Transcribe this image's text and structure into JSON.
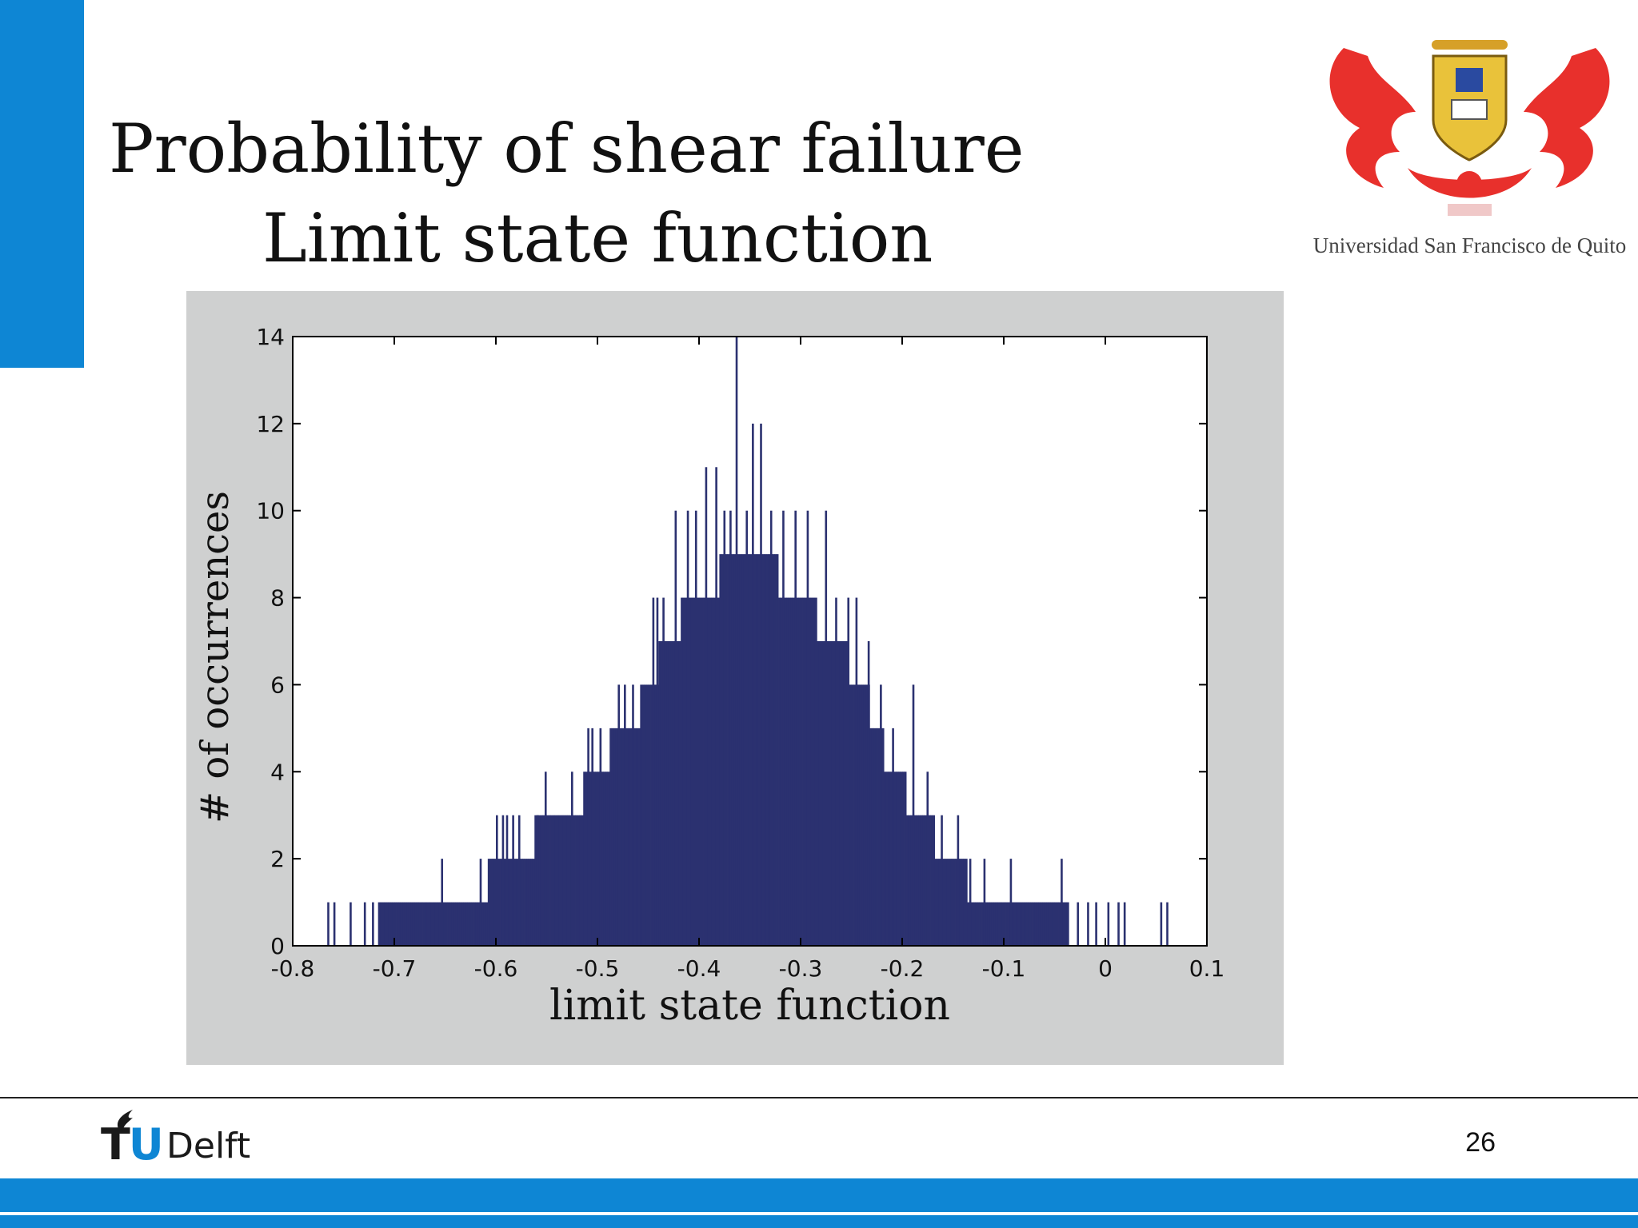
{
  "slide": {
    "title_line1": "Probability of shear failure",
    "title_line2": "Limit state function",
    "page_number": "26",
    "footer_logo_tu": "TU",
    "footer_logo_delft": "Delft",
    "usfq_caption": "Universidad San Francisco de Quito",
    "colors": {
      "accent": "#0e86d4",
      "bars": "#2b3170",
      "chart_bg": "#cfd0d0"
    }
  },
  "chart_data": {
    "type": "bar",
    "xlabel": "limit state function",
    "ylabel": "# of occurrences",
    "xlim": [
      -0.8,
      0.1
    ],
    "ylim": [
      0,
      14
    ],
    "xticks": [
      -0.8,
      -0.7,
      -0.6,
      -0.5,
      -0.4,
      -0.3,
      -0.2,
      -0.1,
      0,
      0.1
    ],
    "xtick_labels": [
      "-0.8",
      "-0.7",
      "-0.6",
      "-0.5",
      "-0.4",
      "-0.3",
      "-0.2",
      "-0.1",
      "0",
      "0.1"
    ],
    "yticks": [
      0,
      2,
      4,
      6,
      8,
      10,
      12,
      14
    ],
    "ytick_labels": [
      "0",
      "2",
      "4",
      "6",
      "8",
      "10",
      "12",
      "14"
    ],
    "grid": false,
    "bin_width": 0.002,
    "profile": [
      [
        -0.78,
        0
      ],
      [
        -0.77,
        0.5
      ],
      [
        -0.75,
        0.6
      ],
      [
        -0.72,
        0.8
      ],
      [
        -0.7,
        1
      ],
      [
        -0.66,
        1
      ],
      [
        -0.64,
        1.2
      ],
      [
        -0.6,
        2
      ],
      [
        -0.56,
        2.9
      ],
      [
        -0.52,
        3.6
      ],
      [
        -0.5,
        4.5
      ],
      [
        -0.47,
        5.4
      ],
      [
        -0.45,
        6.2
      ],
      [
        -0.43,
        7.4
      ],
      [
        -0.4,
        8.5
      ],
      [
        -0.37,
        9
      ],
      [
        -0.33,
        9
      ],
      [
        -0.3,
        8.4
      ],
      [
        -0.27,
        7.4
      ],
      [
        -0.24,
        6.4
      ],
      [
        -0.22,
        5
      ],
      [
        -0.2,
        4
      ],
      [
        -0.17,
        3
      ],
      [
        -0.15,
        2
      ],
      [
        -0.11,
        1.6
      ],
      [
        -0.1,
        1
      ],
      [
        -0.06,
        1
      ],
      [
        -0.04,
        0.9
      ],
      [
        -0.01,
        0.6
      ],
      [
        0.02,
        0.3
      ],
      [
        0.06,
        0
      ]
    ],
    "spikes": [
      [
        -0.766,
        1
      ],
      [
        -0.76,
        1
      ],
      [
        -0.744,
        1
      ],
      [
        -0.73,
        1
      ],
      [
        -0.722,
        1
      ],
      [
        -0.654,
        2
      ],
      [
        -0.616,
        2
      ],
      [
        -0.6,
        3
      ],
      [
        -0.594,
        3
      ],
      [
        -0.59,
        3
      ],
      [
        -0.584,
        3
      ],
      [
        -0.578,
        3
      ],
      [
        -0.56,
        3
      ],
      [
        -0.552,
        4
      ],
      [
        -0.526,
        4
      ],
      [
        -0.51,
        5
      ],
      [
        -0.506,
        5
      ],
      [
        -0.498,
        5
      ],
      [
        -0.48,
        6
      ],
      [
        -0.474,
        6
      ],
      [
        -0.466,
        6
      ],
      [
        -0.446,
        8
      ],
      [
        -0.442,
        8
      ],
      [
        -0.436,
        8
      ],
      [
        -0.424,
        10
      ],
      [
        -0.412,
        10
      ],
      [
        -0.404,
        10
      ],
      [
        -0.394,
        11
      ],
      [
        -0.384,
        11
      ],
      [
        -0.376,
        10
      ],
      [
        -0.37,
        10
      ],
      [
        -0.364,
        14
      ],
      [
        -0.354,
        10
      ],
      [
        -0.348,
        12
      ],
      [
        -0.34,
        12
      ],
      [
        -0.33,
        10
      ],
      [
        -0.318,
        10
      ],
      [
        -0.306,
        10
      ],
      [
        -0.294,
        10
      ],
      [
        -0.276,
        10
      ],
      [
        -0.266,
        8
      ],
      [
        -0.254,
        8
      ],
      [
        -0.246,
        8
      ],
      [
        -0.234,
        7
      ],
      [
        -0.222,
        6
      ],
      [
        -0.21,
        5
      ],
      [
        -0.19,
        6
      ],
      [
        -0.176,
        4
      ],
      [
        -0.162,
        3
      ],
      [
        -0.146,
        3
      ],
      [
        -0.134,
        2
      ],
      [
        -0.12,
        2
      ],
      [
        -0.094,
        2
      ],
      [
        -0.044,
        2
      ],
      [
        -0.028,
        1
      ],
      [
        -0.018,
        1
      ],
      [
        -0.01,
        1
      ],
      [
        0.002,
        1
      ],
      [
        0.012,
        1
      ],
      [
        0.018,
        1
      ],
      [
        0.054,
        1
      ],
      [
        0.06,
        1
      ]
    ]
  }
}
